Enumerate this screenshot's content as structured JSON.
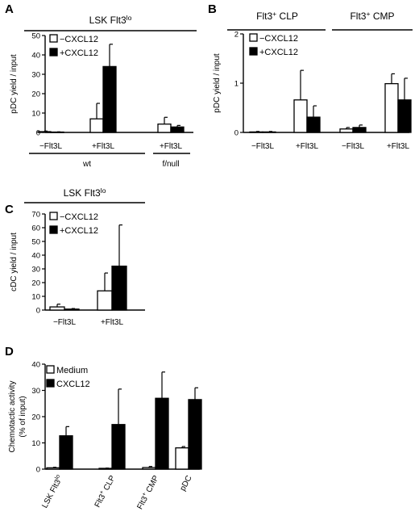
{
  "colors": {
    "filled": "#000000",
    "open": "#ffffff",
    "stroke": "#000000"
  },
  "chart_data": [
    {
      "panel": "A",
      "type": "bar",
      "header": {
        "text": "LSK Flt3",
        "sup": "lo"
      },
      "ylabel": "pDC yield / input",
      "ylim": [
        0,
        50
      ],
      "yticks": [
        "0",
        "10",
        "20",
        "30",
        "40",
        "50"
      ],
      "legend": [
        {
          "label": "−CXCL12",
          "fill": "open"
        },
        {
          "label": "+CXCL12",
          "fill": "filled"
        }
      ],
      "categories": [
        "−Flt3L",
        "+Flt3L",
        "+Flt3L"
      ],
      "groups": [
        {
          "label": "wt",
          "span": [
            0,
            1
          ]
        },
        {
          "label": "f/null",
          "span": [
            2,
            2
          ]
        }
      ],
      "series": [
        {
          "name": "−CXCL12",
          "values": [
            0.4,
            7.0,
            4.3
          ],
          "errors": [
            0.3,
            8.0,
            3.5
          ]
        },
        {
          "name": "+CXCL12",
          "values": [
            0.2,
            34.0,
            2.8
          ],
          "errors": [
            0.1,
            11.5,
            0.8
          ]
        }
      ]
    },
    {
      "panel": "B",
      "type": "bar",
      "groupHeaders": [
        {
          "text": "Flt3",
          "sup": "+",
          "rest": " CLP",
          "span": [
            0,
            1
          ]
        },
        {
          "text": "Flt3",
          "sup": "+",
          "rest": " CMP",
          "span": [
            2,
            3
          ]
        }
      ],
      "ylabel": "pDC yield / input",
      "ylim": [
        0,
        2
      ],
      "yticks": [
        "0",
        "1",
        "2"
      ],
      "legend": [
        {
          "label": "−CXCL12",
          "fill": "open"
        },
        {
          "label": "+CXCL12",
          "fill": "filled"
        }
      ],
      "categories": [
        "−Flt3L",
        "+Flt3L",
        "−Flt3L",
        "+Flt3L"
      ],
      "series": [
        {
          "name": "−CXCL12",
          "values": [
            0.01,
            0.66,
            0.07,
            0.99
          ],
          "errors": [
            0.01,
            0.6,
            0.03,
            0.2
          ]
        },
        {
          "name": "+CXCL12",
          "values": [
            0.01,
            0.31,
            0.1,
            0.66
          ],
          "errors": [
            0.01,
            0.23,
            0.05,
            0.44
          ]
        }
      ]
    },
    {
      "panel": "C",
      "type": "bar",
      "header": {
        "text": "LSK Flt3",
        "sup": "lo"
      },
      "ylabel": "cDC yield / input",
      "ylim": [
        0,
        70
      ],
      "yticks": [
        "0",
        "10",
        "20",
        "30",
        "40",
        "50",
        "60",
        "70"
      ],
      "legend": [
        {
          "label": "−CXCL12",
          "fill": "open"
        },
        {
          "label": "+CXCL12",
          "fill": "filled"
        }
      ],
      "categories": [
        "−Flt3L",
        "+Flt3L"
      ],
      "series": [
        {
          "name": "−CXCL12",
          "values": [
            2.3,
            14.0
          ],
          "errors": [
            2.0,
            13.0
          ]
        },
        {
          "name": "+CXCL12",
          "values": [
            0.7,
            32.0
          ],
          "errors": [
            0.4,
            30.0
          ]
        }
      ]
    },
    {
      "panel": "D",
      "type": "bar",
      "ylabel": [
        "Chemotactic activity",
        "(% of input)"
      ],
      "ylim": [
        0,
        40
      ],
      "yticks": [
        "0",
        "10",
        "20",
        "30",
        "40"
      ],
      "legend": [
        {
          "label": "Medium",
          "fill": "open"
        },
        {
          "label": "CXCL12",
          "fill": "filled"
        }
      ],
      "categories": [
        {
          "text": "LSK Flt3",
          "sup": "lo",
          "rest": ""
        },
        {
          "text": "Flt3",
          "sup": "+",
          "rest": " CLP"
        },
        {
          "text": "Flt3",
          "sup": "+",
          "rest": " CMP"
        },
        {
          "text": "pDC",
          "sup": "",
          "rest": ""
        }
      ],
      "series": [
        {
          "name": "Medium",
          "values": [
            0.5,
            0.3,
            0.6,
            8.1
          ],
          "errors": [
            0.2,
            0.1,
            0.4,
            0.5
          ]
        },
        {
          "name": "CXCL12",
          "values": [
            12.7,
            17.0,
            27.0,
            26.5
          ],
          "errors": [
            3.5,
            13.5,
            10.0,
            4.5
          ]
        }
      ]
    }
  ]
}
